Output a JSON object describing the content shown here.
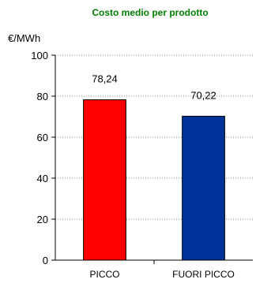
{
  "chart_data": {
    "type": "bar",
    "title": "Costo medio per prodotto",
    "ylabel": "€/MWh",
    "xlabel": "",
    "categories": [
      "PICCO",
      "FUORI PICCO"
    ],
    "values": [
      78.24,
      70.22
    ],
    "data_labels": [
      "78,24",
      "70,22"
    ],
    "bar_colors": [
      "#ff0000",
      "#003399"
    ],
    "title_color": "#008000",
    "ylim": [
      0,
      100
    ],
    "yticks": [
      0,
      20,
      40,
      60,
      80,
      100
    ],
    "grid": true,
    "legend": "none"
  }
}
